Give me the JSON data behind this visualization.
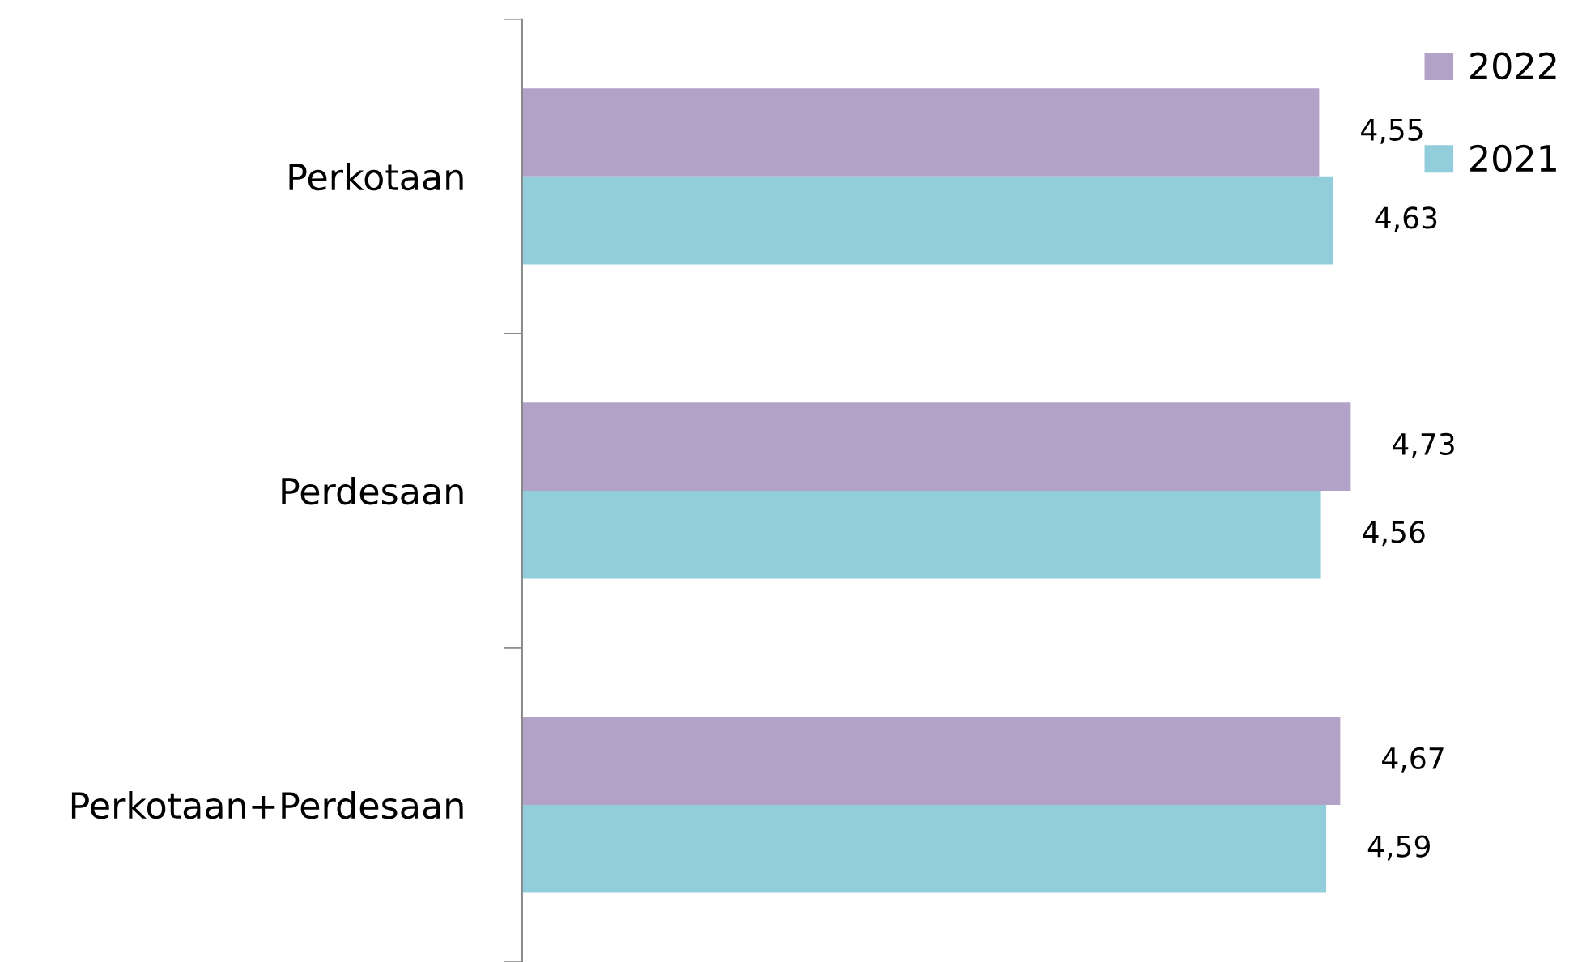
{
  "chart_data": {
    "type": "bar",
    "orientation": "horizontal",
    "categories": [
      "Perkotaan",
      "Perdesaan",
      "Perkotaan+Perdesaan"
    ],
    "series": [
      {
        "name": "2022",
        "color": "#b3a2c7",
        "values": [
          4.55,
          4.73,
          4.67
        ],
        "value_labels": [
          "4,55",
          "4,73",
          "4,67"
        ]
      },
      {
        "name": "2021",
        "color": "#92cddc",
        "values": [
          4.63,
          4.56,
          4.59
        ],
        "value_labels": [
          "4,63",
          "4,56",
          "4,59"
        ]
      }
    ],
    "tick_labels": "y",
    "grid": false,
    "legend": "top right"
  }
}
